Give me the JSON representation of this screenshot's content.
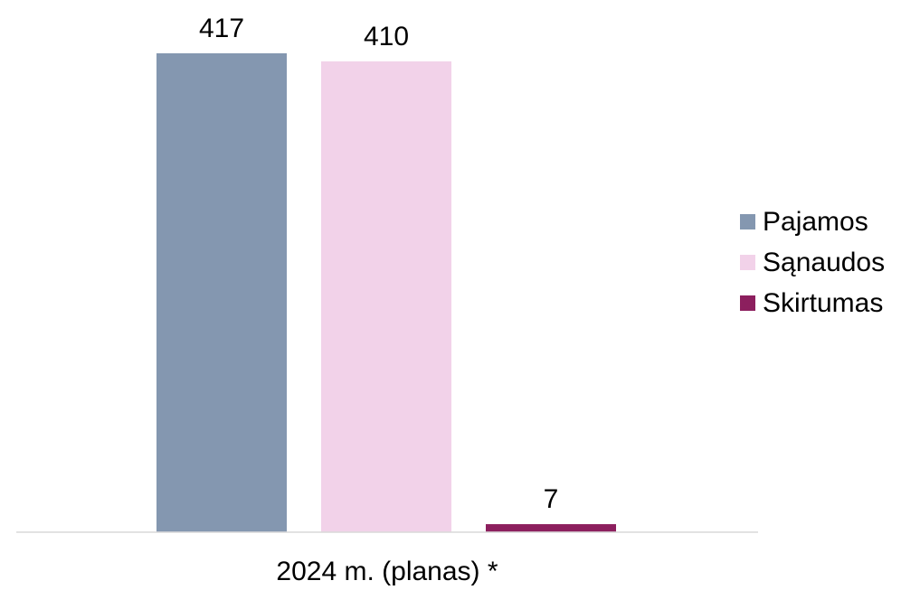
{
  "chart_data": {
    "type": "bar",
    "categories": [
      "2024 m. (planas) *"
    ],
    "series": [
      {
        "name": "Pajamos",
        "values": [
          417
        ],
        "color": "#8497B0"
      },
      {
        "name": "Sąnaudos",
        "values": [
          410
        ],
        "color": "#F2D2E9"
      },
      {
        "name": "Skirtumas",
        "values": [
          7
        ],
        "color": "#8C1F5E"
      }
    ],
    "data_labels": [
      "417",
      "410",
      "7"
    ],
    "ylim": [
      0,
      417
    ],
    "grid": false,
    "legend_position": "right"
  }
}
